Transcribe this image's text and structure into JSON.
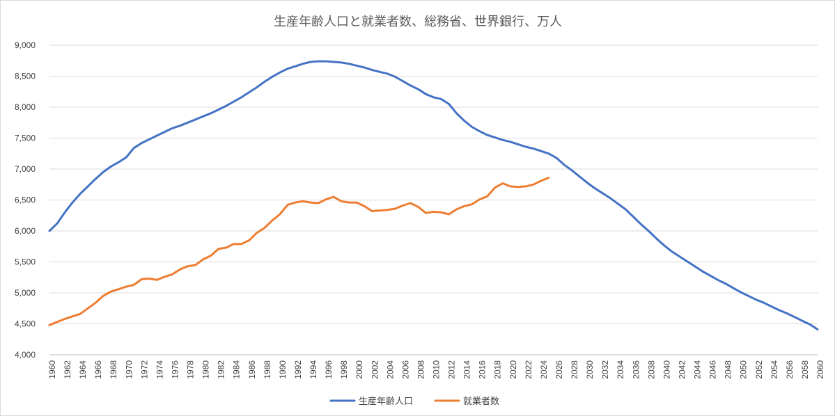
{
  "chart_data": {
    "type": "line",
    "title": "生産年齢人口と就業者数、総務省、世界銀行、万人",
    "xlabel": "",
    "ylabel": "",
    "xlim": [
      1960,
      2060
    ],
    "ylim": [
      4000,
      9000
    ],
    "y_ticks": [
      "4,000",
      "4,500",
      "5,000",
      "5,500",
      "6,000",
      "6,500",
      "7,000",
      "7,500",
      "8,000",
      "8,500",
      "9,000"
    ],
    "x_ticks": [
      "1960",
      "1962",
      "1964",
      "1966",
      "1968",
      "1970",
      "1972",
      "1974",
      "1976",
      "1978",
      "1980",
      "1982",
      "1984",
      "1986",
      "1988",
      "1990",
      "1992",
      "1994",
      "1996",
      "1998",
      "2000",
      "2002",
      "2004",
      "2006",
      "2008",
      "2010",
      "2012",
      "2014",
      "2016",
      "2018",
      "2020",
      "2022",
      "2024",
      "2026",
      "2028",
      "2030",
      "2032",
      "2034",
      "2036",
      "2038",
      "2040",
      "2042",
      "2044",
      "2046",
      "2048",
      "2050",
      "2052",
      "2054",
      "2056",
      "2058",
      "2060"
    ],
    "grid": true,
    "legend_position": "bottom",
    "series": [
      {
        "name": "生産年齢人口",
        "color": "#4472c4",
        "x": [
          1960,
          1961,
          1962,
          1963,
          1964,
          1965,
          1966,
          1967,
          1968,
          1969,
          1970,
          1971,
          1972,
          1973,
          1974,
          1975,
          1976,
          1977,
          1978,
          1979,
          1980,
          1981,
          1982,
          1983,
          1984,
          1985,
          1986,
          1987,
          1988,
          1989,
          1990,
          1991,
          1992,
          1993,
          1994,
          1995,
          1996,
          1997,
          1998,
          1999,
          2000,
          2001,
          2002,
          2003,
          2004,
          2005,
          2006,
          2007,
          2008,
          2009,
          2010,
          2011,
          2012,
          2013,
          2014,
          2015,
          2016,
          2017,
          2018,
          2019,
          2020,
          2021,
          2022,
          2023,
          2024,
          2025,
          2026,
          2027,
          2028,
          2029,
          2030,
          2031,
          2032,
          2033,
          2034,
          2035,
          2036,
          2037,
          2038,
          2039,
          2040,
          2041,
          2042,
          2043,
          2044,
          2045,
          2046,
          2047,
          2048,
          2049,
          2050,
          2051,
          2052,
          2053,
          2054,
          2055,
          2056,
          2057,
          2058,
          2059,
          2060
        ],
        "values": [
          6000,
          6120,
          6300,
          6460,
          6600,
          6720,
          6840,
          6950,
          7040,
          7110,
          7190,
          7340,
          7420,
          7480,
          7540,
          7600,
          7660,
          7700,
          7750,
          7800,
          7850,
          7900,
          7960,
          8020,
          8090,
          8160,
          8240,
          8320,
          8410,
          8490,
          8560,
          8620,
          8660,
          8700,
          8730,
          8740,
          8740,
          8730,
          8720,
          8700,
          8670,
          8640,
          8600,
          8570,
          8540,
          8490,
          8420,
          8350,
          8290,
          8210,
          8160,
          8130,
          8050,
          7900,
          7780,
          7680,
          7610,
          7550,
          7510,
          7470,
          7440,
          7400,
          7360,
          7330,
          7290,
          7250,
          7180,
          7070,
          6980,
          6880,
          6780,
          6690,
          6610,
          6530,
          6440,
          6350,
          6230,
          6110,
          6000,
          5880,
          5770,
          5670,
          5590,
          5510,
          5430,
          5350,
          5280,
          5210,
          5150,
          5080,
          5010,
          4950,
          4890,
          4840,
          4780,
          4720,
          4670,
          4610,
          4550,
          4490,
          4410
        ]
      },
      {
        "name": "就業者数",
        "color": "#ed7d31",
        "x": [
          1960,
          1961,
          1962,
          1963,
          1964,
          1965,
          1966,
          1967,
          1968,
          1969,
          1970,
          1971,
          1972,
          1973,
          1974,
          1975,
          1976,
          1977,
          1978,
          1979,
          1980,
          1981,
          1982,
          1983,
          1984,
          1985,
          1986,
          1987,
          1988,
          1989,
          1990,
          1991,
          1992,
          1993,
          1994,
          1995,
          1996,
          1997,
          1998,
          1999,
          2000,
          2001,
          2002,
          2003,
          2004,
          2005,
          2006,
          2007,
          2008,
          2009,
          2010,
          2011,
          2012,
          2013,
          2014,
          2015,
          2016,
          2017,
          2018,
          2019,
          2020,
          2021,
          2022,
          2023,
          2024,
          2025
        ],
        "values": [
          4480,
          4530,
          4580,
          4620,
          4660,
          4750,
          4840,
          4950,
          5020,
          5060,
          5100,
          5130,
          5220,
          5230,
          5210,
          5260,
          5300,
          5380,
          5430,
          5450,
          5540,
          5600,
          5710,
          5730,
          5790,
          5790,
          5850,
          5970,
          6050,
          6170,
          6270,
          6420,
          6460,
          6480,
          6460,
          6450,
          6510,
          6550,
          6480,
          6460,
          6460,
          6400,
          6320,
          6330,
          6340,
          6360,
          6410,
          6450,
          6390,
          6290,
          6310,
          6300,
          6270,
          6350,
          6400,
          6430,
          6510,
          6560,
          6700,
          6770,
          6720,
          6710,
          6720,
          6750,
          6810,
          6860
        ]
      }
    ]
  }
}
